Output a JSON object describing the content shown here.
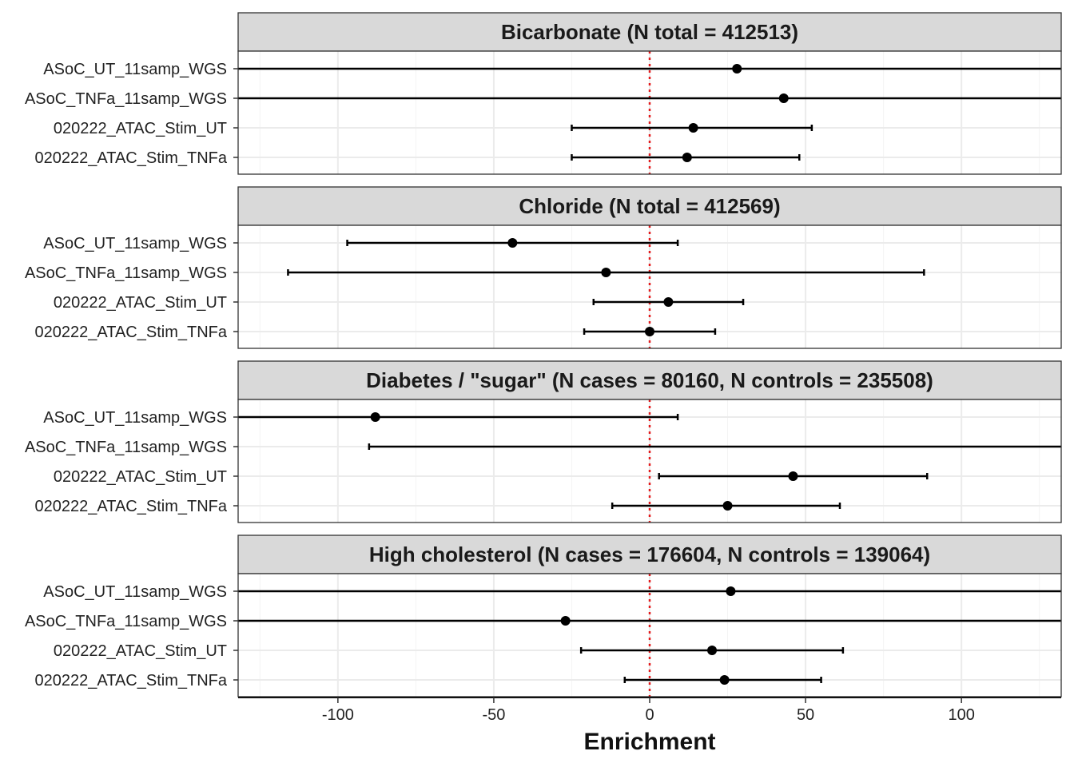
{
  "chart_data": {
    "type": "forest",
    "xlabel": "Enrichment",
    "xlim": [
      -132,
      132
    ],
    "xticks": [
      -100,
      -50,
      0,
      50,
      100
    ],
    "reference_line": {
      "x": 0,
      "color": "#e41a1c",
      "style": "dotted"
    },
    "grid": true,
    "rows": [
      "ASoC_UT_11samp_WGS",
      "ASoC_TNFa_11samp_WGS",
      "020222_ATAC_Stim_UT",
      "020222_ATAC_Stim_TNFa"
    ],
    "panels": [
      {
        "title": "Bicarbonate (N total = 412513)",
        "points": [
          {
            "label": "ASoC_UT_11samp_WGS",
            "estimate": 28,
            "lower": null,
            "upper": null
          },
          {
            "label": "ASoC_TNFa_11samp_WGS",
            "estimate": 43,
            "lower": null,
            "upper": null
          },
          {
            "label": "020222_ATAC_Stim_UT",
            "estimate": 14,
            "lower": -25,
            "upper": 52
          },
          {
            "label": "020222_ATAC_Stim_TNFa",
            "estimate": 12,
            "lower": -25,
            "upper": 48
          }
        ]
      },
      {
        "title": "Chloride (N total = 412569)",
        "points": [
          {
            "label": "ASoC_UT_11samp_WGS",
            "estimate": -44,
            "lower": -97,
            "upper": 9
          },
          {
            "label": "ASoC_TNFa_11samp_WGS",
            "estimate": -14,
            "lower": -116,
            "upper": 88
          },
          {
            "label": "020222_ATAC_Stim_UT",
            "estimate": 6,
            "lower": -18,
            "upper": 30
          },
          {
            "label": "020222_ATAC_Stim_TNFa",
            "estimate": 0,
            "lower": -21,
            "upper": 21
          }
        ]
      },
      {
        "title": "Diabetes / \"sugar\" (N cases = 80160, N controls = 235508)",
        "points": [
          {
            "label": "ASoC_UT_11samp_WGS",
            "estimate": -88,
            "lower": null,
            "upper": 9
          },
          {
            "label": "ASoC_TNFa_11samp_WGS",
            "estimate": null,
            "lower": -90,
            "upper": null
          },
          {
            "label": "020222_ATAC_Stim_UT",
            "estimate": 46,
            "lower": 3,
            "upper": 89
          },
          {
            "label": "020222_ATAC_Stim_TNFa",
            "estimate": 25,
            "lower": -12,
            "upper": 61
          }
        ]
      },
      {
        "title": "High cholesterol (N cases = 176604, N controls = 139064)",
        "points": [
          {
            "label": "ASoC_UT_11samp_WGS",
            "estimate": 26,
            "lower": null,
            "upper": null
          },
          {
            "label": "ASoC_TNFa_11samp_WGS",
            "estimate": -27,
            "lower": null,
            "upper": null
          },
          {
            "label": "020222_ATAC_Stim_UT",
            "estimate": 20,
            "lower": -22,
            "upper": 62
          },
          {
            "label": "020222_ATAC_Stim_TNFa",
            "estimate": 24,
            "lower": -8,
            "upper": 55
          }
        ]
      }
    ]
  }
}
